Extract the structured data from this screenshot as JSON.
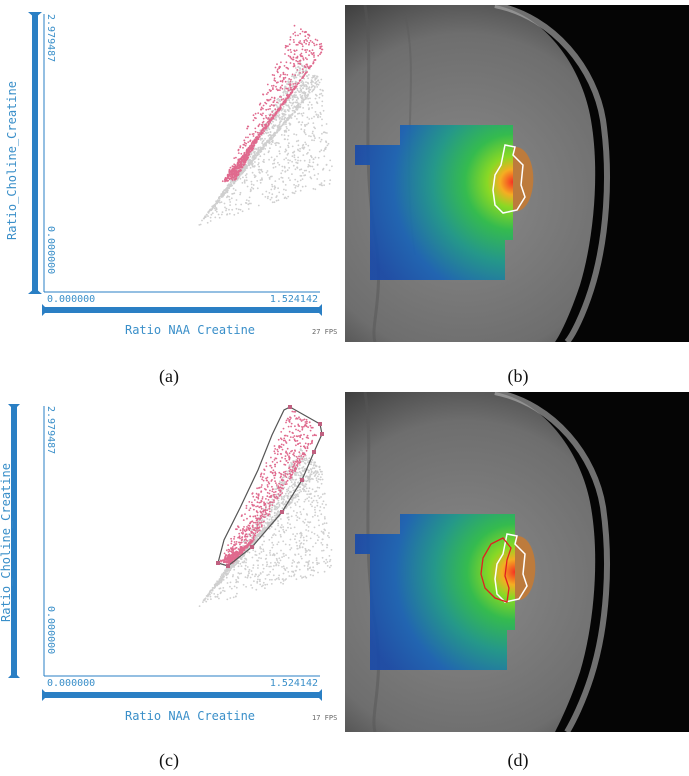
{
  "figure": {
    "captions": [
      "(a)",
      "(b)",
      "(c)",
      "(d)"
    ],
    "scatter_panels": [
      {
        "id": "a",
        "y_axis_label": "Ratio_Choline_Creatine",
        "x_axis_label": "Ratio NAA Creatine",
        "y_max_label": "2.979487",
        "y_min_label": "0.000000",
        "x_min_label": "0.000000",
        "x_max_label": "1.524142",
        "fps_label": "27 FPS",
        "selection_polygon": false
      },
      {
        "id": "c",
        "y_axis_label": "Ratio_Choline_Creatine",
        "x_axis_label": "Ratio NAA Creatine",
        "y_max_label": "2.979487",
        "y_min_label": "0.000000",
        "x_min_label": "0.000000",
        "x_max_label": "1.524142",
        "fps_label": "17 FPS",
        "selection_polygon": true
      }
    ],
    "colors": {
      "axis_blue": "#2a7fc4",
      "selected_points": "#e06a8e",
      "unselected_points": "#cfcfcf",
      "polygon": "#555555"
    }
  }
}
